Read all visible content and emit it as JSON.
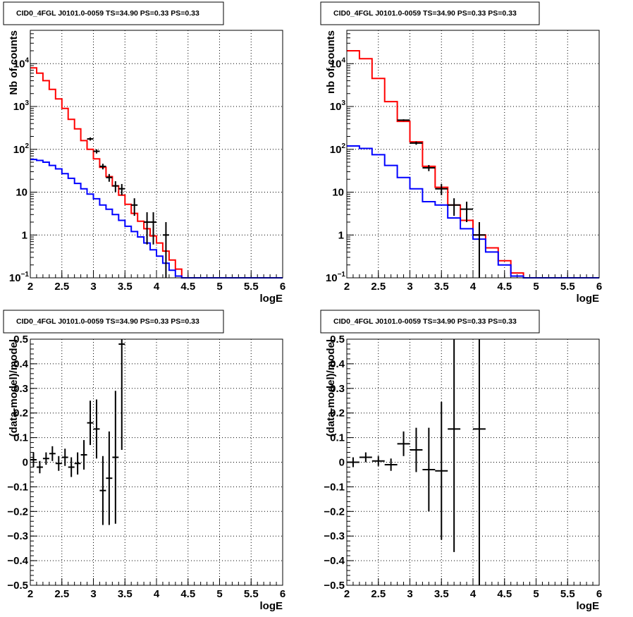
{
  "chart_data": [
    {
      "type": "step",
      "title": "CID0_4FGL J0101.0-0059 TS=34.90 PS=0.33 PS=0.33",
      "xlabel": "logE",
      "ylabel": "Nb of counts",
      "xlim": [
        2,
        6
      ],
      "ylim": [
        0.1,
        60000
      ],
      "yscale": "log",
      "grid": true,
      "x_ticks": [
        "2",
        "2.5",
        "3",
        "3.5",
        "4",
        "4.5",
        "5",
        "5.5",
        "6"
      ],
      "y_ticks": [
        {
          "base": "10",
          "exp": "−1"
        },
        {
          "base": "1",
          "exp": ""
        },
        {
          "base": "10",
          "exp": ""
        },
        {
          "base": "10",
          "exp": "2"
        },
        {
          "base": "10",
          "exp": "3"
        },
        {
          "base": "10",
          "exp": "4"
        }
      ],
      "bin_width": 0.1,
      "series": [
        {
          "color": "#ff0000",
          "kind": "model_total",
          "bins": [
            2.0,
            2.1,
            2.2,
            2.3,
            2.4,
            2.5,
            2.6,
            2.7,
            2.8,
            2.9,
            3.0,
            3.1,
            3.2,
            3.3,
            3.4,
            3.5,
            3.6,
            3.7,
            3.8,
            3.9,
            4.0,
            4.1,
            4.2,
            4.3,
            4.4,
            4.5,
            4.6,
            4.7,
            4.8,
            4.9,
            5.0,
            5.1,
            5.2,
            5.3,
            5.4,
            5.5,
            5.6,
            5.7,
            5.8,
            5.9
          ],
          "values": [
            8000,
            6000,
            4000,
            2500,
            1500,
            900,
            500,
            300,
            160,
            100,
            60,
            38,
            23,
            14,
            8.5,
            5.2,
            3.2,
            2.1,
            1.4,
            0.95,
            0.65,
            0.42,
            0.26,
            0.16,
            0.1,
            0.1,
            0.1,
            0.1,
            0.1,
            0.1,
            0.1,
            0.1,
            0.1,
            0.1,
            0.1,
            0.1,
            0.1,
            0.1,
            0.1,
            0.1
          ]
        },
        {
          "color": "#0000ff",
          "kind": "model_background",
          "bins": [
            2.0,
            2.1,
            2.2,
            2.3,
            2.4,
            2.5,
            2.6,
            2.7,
            2.8,
            2.9,
            3.0,
            3.1,
            3.2,
            3.3,
            3.4,
            3.5,
            3.6,
            3.7,
            3.8,
            3.9,
            4.0,
            4.1,
            4.2,
            4.3,
            4.4,
            4.5,
            4.6,
            4.7,
            4.8,
            4.9,
            5.0,
            5.1,
            5.2,
            5.3,
            5.4,
            5.5,
            5.6,
            5.7,
            5.8,
            5.9
          ],
          "values": [
            58,
            55,
            50,
            42,
            35,
            27,
            21,
            16,
            12,
            9,
            7,
            5,
            4,
            3,
            2.2,
            1.6,
            1.2,
            0.9,
            0.65,
            0.45,
            0.32,
            0.22,
            0.15,
            0.11,
            0.1,
            0.1,
            0.1,
            0.1,
            0.1,
            0.1,
            0.1,
            0.1,
            0.1,
            0.1,
            0.1,
            0.1,
            0.1,
            0.1,
            0.1,
            0.1
          ]
        }
      ],
      "points": [
        {
          "x": 2.95,
          "y": 175,
          "yerr": 15
        },
        {
          "x": 3.05,
          "y": 90,
          "yerr": 10
        },
        {
          "x": 3.15,
          "y": 40,
          "yerr": 6
        },
        {
          "x": 3.25,
          "y": 22,
          "yerr": 4.5
        },
        {
          "x": 3.35,
          "y": 14,
          "yerr": 4
        },
        {
          "x": 3.45,
          "y": 12,
          "yerr": 3.5
        },
        {
          "x": 3.65,
          "y": 5,
          "yerr": 2.2
        },
        {
          "x": 3.85,
          "y": 2,
          "yerr": 1.4
        },
        {
          "x": 3.95,
          "y": 2,
          "yerr": 1.4
        },
        {
          "x": 4.15,
          "y": 1,
          "yerr": 1
        }
      ],
      "point_xerr": 0.05
    },
    {
      "type": "step",
      "title": "CID0_4FGL J0101.0-0059 TS=34.90 PS=0.33 PS=0.33",
      "xlabel": "logE",
      "ylabel": "nb of counts",
      "xlim": [
        2,
        6
      ],
      "ylim": [
        0.1,
        60000
      ],
      "yscale": "log",
      "grid": true,
      "x_ticks": [
        "2",
        "2.5",
        "3",
        "3.5",
        "4",
        "4.5",
        "5",
        "5.5",
        "6"
      ],
      "y_ticks": [
        {
          "base": "10",
          "exp": "−1"
        },
        {
          "base": "1",
          "exp": ""
        },
        {
          "base": "10",
          "exp": ""
        },
        {
          "base": "10",
          "exp": "2"
        },
        {
          "base": "10",
          "exp": "3"
        },
        {
          "base": "10",
          "exp": "4"
        }
      ],
      "bin_width": 0.2,
      "series": [
        {
          "color": "#ff0000",
          "kind": "model_total",
          "bins": [
            2.0,
            2.2,
            2.4,
            2.6,
            2.8,
            3.0,
            3.2,
            3.4,
            3.6,
            3.8,
            4.0,
            4.2,
            4.4,
            4.6,
            4.8,
            5.0,
            5.2,
            5.4,
            5.6,
            5.8
          ],
          "values": [
            20000,
            13000,
            4500,
            1300,
            450,
            150,
            40,
            13,
            5,
            2.2,
            1,
            0.5,
            0.25,
            0.13,
            0.1,
            0.1,
            0.1,
            0.1,
            0.1,
            0.1
          ]
        },
        {
          "color": "#0000ff",
          "kind": "model_background",
          "bins": [
            2.0,
            2.2,
            2.4,
            2.6,
            2.8,
            3.0,
            3.2,
            3.4,
            3.6,
            3.8,
            4.0,
            4.2,
            4.4,
            4.6,
            4.8,
            5.0,
            5.2,
            5.4,
            5.6,
            5.8
          ],
          "values": [
            120,
            105,
            75,
            42,
            22,
            12,
            6,
            5,
            2.5,
            1.4,
            0.8,
            0.4,
            0.2,
            0.11,
            0.1,
            0.1,
            0.1,
            0.1,
            0.1,
            0.1
          ]
        }
      ],
      "points": [
        {
          "x": 2.9,
          "y": 480,
          "yerr": 22
        },
        {
          "x": 3.1,
          "y": 140,
          "yerr": 12
        },
        {
          "x": 3.3,
          "y": 37,
          "yerr": 6
        },
        {
          "x": 3.5,
          "y": 12,
          "yerr": 3.5
        },
        {
          "x": 3.7,
          "y": 5,
          "yerr": 2.2
        },
        {
          "x": 3.9,
          "y": 4,
          "yerr": 2
        },
        {
          "x": 4.1,
          "y": 1,
          "yerr": 1
        }
      ],
      "point_xerr": 0.1
    },
    {
      "type": "errorbar",
      "title": "CID0_4FGL J0101.0-0059 TS=34.90 PS=0.33 PS=0.33",
      "xlabel": "logE",
      "ylabel": "(data-model)/model",
      "xlim": [
        2,
        6
      ],
      "ylim": [
        -0.5,
        0.5
      ],
      "grid": true,
      "x_ticks": [
        "2",
        "2.5",
        "3",
        "3.5",
        "4",
        "4.5",
        "5",
        "5.5",
        "6"
      ],
      "y_ticks": [
        "−0.5",
        "−0.4",
        "−0.3",
        "−0.2",
        "−0.1",
        "0",
        "0.1",
        "0.2",
        "0.3",
        "0.4",
        "0.5"
      ],
      "point_xerr": 0.05,
      "points": [
        {
          "x": 2.05,
          "y": 0.01,
          "yerr": 0.03
        },
        {
          "x": 2.15,
          "y": -0.02,
          "yerr": 0.025
        },
        {
          "x": 2.25,
          "y": 0.015,
          "yerr": 0.025
        },
        {
          "x": 2.35,
          "y": 0.035,
          "yerr": 0.03
        },
        {
          "x": 2.45,
          "y": -0.005,
          "yerr": 0.03
        },
        {
          "x": 2.55,
          "y": 0.02,
          "yerr": 0.035
        },
        {
          "x": 2.65,
          "y": -0.02,
          "yerr": 0.04
        },
        {
          "x": 2.75,
          "y": -0.005,
          "yerr": 0.045
        },
        {
          "x": 2.85,
          "y": 0.03,
          "yerr": 0.06
        },
        {
          "x": 2.95,
          "y": 0.16,
          "yerr": 0.09
        },
        {
          "x": 3.05,
          "y": 0.135,
          "yerr": 0.12
        },
        {
          "x": 3.15,
          "y": -0.115,
          "yerr": 0.14
        },
        {
          "x": 3.25,
          "y": -0.065,
          "yerr": 0.19
        },
        {
          "x": 3.35,
          "y": 0.02,
          "yerr": 0.27
        },
        {
          "x": 3.45,
          "y": 0.48,
          "yerr": 0.43
        }
      ]
    },
    {
      "type": "errorbar",
      "title": "CID0_4FGL J0101.0-0059 TS=34.90 PS=0.33 PS=0.33",
      "xlabel": "logE",
      "ylabel": "(data-model)/model",
      "xlim": [
        2,
        6
      ],
      "ylim": [
        -0.5,
        0.5
      ],
      "grid": true,
      "x_ticks": [
        "2",
        "2.5",
        "3",
        "3.5",
        "4",
        "4.5",
        "5",
        "5.5",
        "6"
      ],
      "y_ticks": [
        "−0.5",
        "−0.4",
        "−0.3",
        "−0.2",
        "−0.1",
        "0",
        "0.1",
        "0.2",
        "0.3",
        "0.4",
        "0.5"
      ],
      "point_xerr": 0.1,
      "points": [
        {
          "x": 2.1,
          "y": 0.0,
          "yerr": 0.02
        },
        {
          "x": 2.3,
          "y": 0.02,
          "yerr": 0.02
        },
        {
          "x": 2.5,
          "y": 0.005,
          "yerr": 0.02
        },
        {
          "x": 2.7,
          "y": -0.01,
          "yerr": 0.025
        },
        {
          "x": 2.9,
          "y": 0.075,
          "yerr": 0.05
        },
        {
          "x": 3.1,
          "y": 0.05,
          "yerr": 0.09
        },
        {
          "x": 3.3,
          "y": -0.03,
          "yerr": 0.17
        },
        {
          "x": 3.5,
          "y": -0.035,
          "yerr": 0.28
        },
        {
          "x": 3.7,
          "y": 0.135,
          "yerr": 0.5
        },
        {
          "x": 4.1,
          "y": 0.135,
          "yerr": 1.0
        }
      ]
    }
  ]
}
